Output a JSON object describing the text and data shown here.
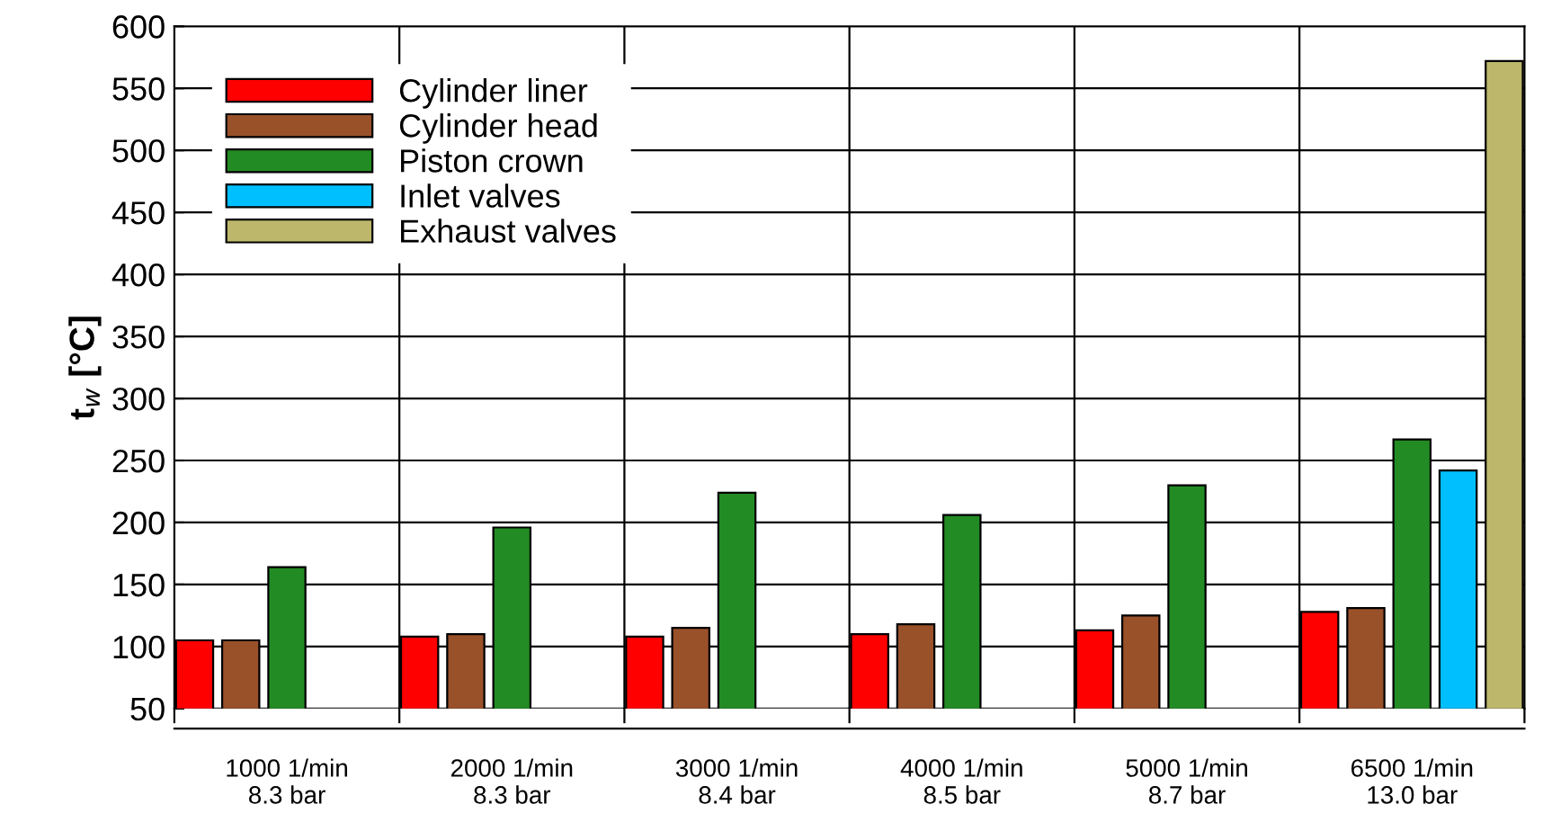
{
  "chart_data": {
    "type": "bar",
    "ylabel": "t$_{w}$ [°C]",
    "categories": [
      "1000 1/min\n8.3 bar",
      "2000 1/min\n8.3 bar",
      "3000 1/min\n8.4 bar",
      "4000 1/min\n8.5 bar",
      "5000 1/min\n8.7 bar",
      "6500 1/min\n13.0 bar"
    ],
    "series": [
      {
        "name": "Cylinder liner",
        "color": "#ff0000",
        "values": [
          105,
          108,
          108,
          110,
          113,
          128
        ]
      },
      {
        "name": "Cylinder head",
        "color": "#99512a",
        "values": [
          105,
          110,
          115,
          118,
          125,
          131
        ]
      },
      {
        "name": "Piston crown",
        "color": "#238b23",
        "values": [
          164,
          196,
          224,
          206,
          230,
          267
        ]
      },
      {
        "name": "Inlet valves",
        "color": "#00bfff",
        "values": [
          null,
          null,
          null,
          null,
          null,
          242
        ]
      },
      {
        "name": "Exhaust valves",
        "color": "#bdb76b",
        "values": [
          null,
          null,
          null,
          null,
          null,
          572
        ]
      }
    ],
    "ylim": [
      50,
      600
    ],
    "yticks": [
      50,
      100,
      150,
      200,
      250,
      300,
      350,
      400,
      450,
      500,
      550,
      600
    ],
    "grid": true,
    "legend": "top left"
  }
}
